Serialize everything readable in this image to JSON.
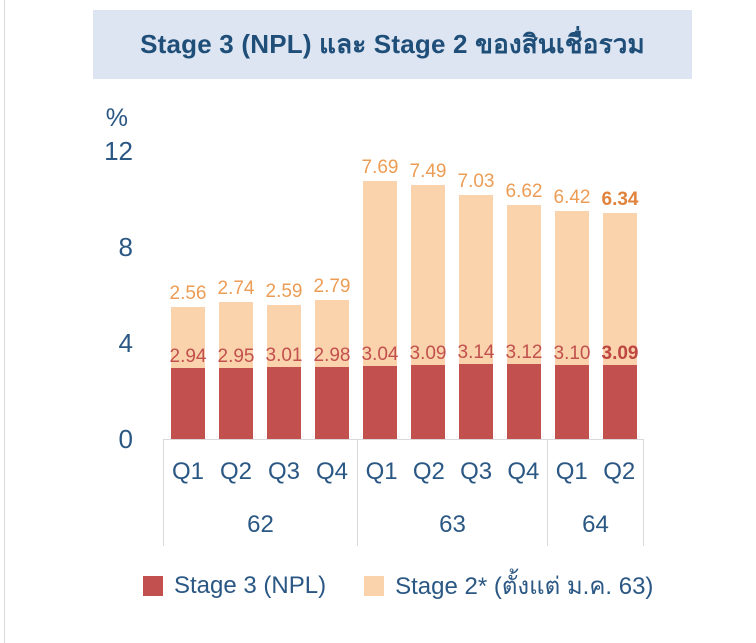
{
  "page": {
    "title": "Stage 3 (NPL) และ Stage 2 ของสินเชื่อรวม"
  },
  "colors": {
    "banner_bg": "#DCE5F1",
    "title_text": "#1F4E79",
    "axis_text": "#2A5783",
    "stage3_bar": "#C2504E",
    "stage2_bar": "#FAD2AC",
    "stage3_label": "#C2504E",
    "stage2_label": "#EC9C55",
    "stage3_label_bold": "#BE4642",
    "stage2_label_bold": "#E0833C",
    "table_border": "#D9D9D9"
  },
  "axis": {
    "unit": "%",
    "yticks": [
      "12",
      "8",
      "4",
      "0"
    ]
  },
  "chart_data": {
    "type": "bar",
    "stacked": true,
    "title": "Stage 3 (NPL) และ Stage 2 ของสินเชื่อรวม",
    "ylabel": "%",
    "ylim": [
      0,
      12
    ],
    "grid": false,
    "legend_position": "bottom",
    "categories": [
      "62 Q1",
      "62 Q2",
      "62 Q3",
      "62 Q4",
      "63 Q1",
      "63 Q2",
      "63 Q3",
      "63 Q4",
      "64 Q1",
      "64 Q2"
    ],
    "groups": [
      {
        "year": "62",
        "quarters": [
          "Q1",
          "Q2",
          "Q3",
          "Q4"
        ]
      },
      {
        "year": "63",
        "quarters": [
          "Q1",
          "Q2",
          "Q3",
          "Q4"
        ]
      },
      {
        "year": "64",
        "quarters": [
          "Q1",
          "Q2"
        ]
      }
    ],
    "series": [
      {
        "name": "Stage 3 (NPL)",
        "color": "#C2504E",
        "values": [
          2.94,
          2.95,
          3.01,
          2.98,
          3.04,
          3.09,
          3.14,
          3.12,
          3.1,
          3.09
        ]
      },
      {
        "name": "Stage 2* (ตั้งแต่ ม.ค. 63)",
        "color": "#FAD2AC",
        "values": [
          2.56,
          2.74,
          2.59,
          2.79,
          7.69,
          7.49,
          7.03,
          6.62,
          6.42,
          6.34
        ]
      }
    ],
    "bold_last_point": true
  },
  "legend": {
    "items": [
      {
        "label": "Stage 3 (NPL)",
        "color": "#C2504E"
      },
      {
        "label": "Stage 2* (ตั้งแต่ ม.ค. 63)",
        "color": "#FAD2AC"
      }
    ]
  }
}
